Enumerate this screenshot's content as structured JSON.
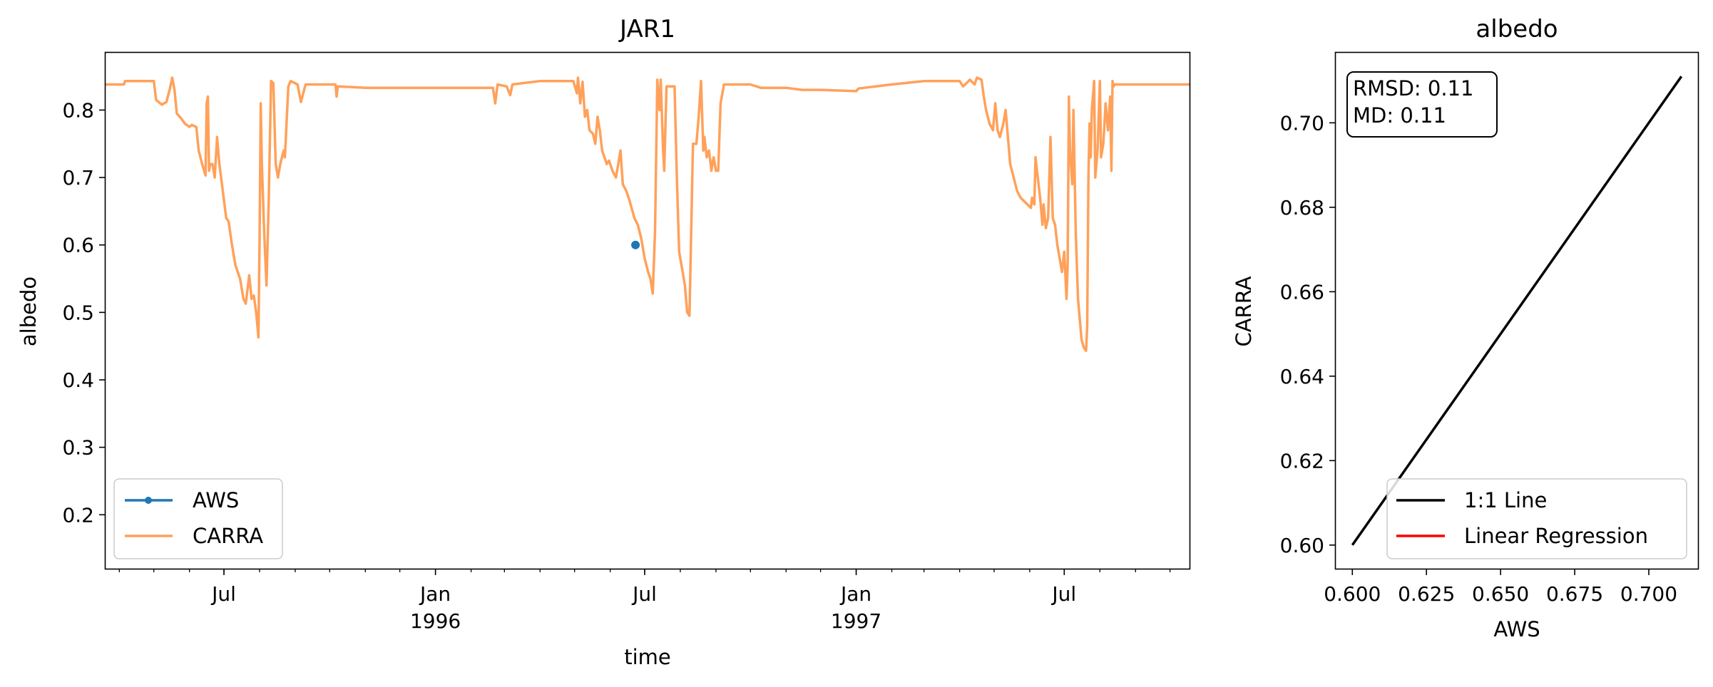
{
  "chart_data": [
    {
      "type": "line",
      "title": "JAR1",
      "xlabel": "time",
      "ylabel": "albedo",
      "xlim": [
        "1995-03-20",
        "1997-10-18"
      ],
      "ylim": [
        0.12,
        0.885
      ],
      "yticks": [
        "0.2",
        "0.3",
        "0.4",
        "0.5",
        "0.6",
        "0.7",
        "0.8"
      ],
      "xticks": [
        {
          "date": "1995-07-01",
          "label": "Jul",
          "sublabel": ""
        },
        {
          "date": "1996-01-01",
          "label": "Jan",
          "sublabel": "1996"
        },
        {
          "date": "1996-07-01",
          "label": "Jul",
          "sublabel": ""
        },
        {
          "date": "1997-01-01",
          "label": "Jan",
          "sublabel": "1997"
        },
        {
          "date": "1997-07-01",
          "label": "Jul",
          "sublabel": ""
        }
      ],
      "minor_ticks_monthly": true,
      "legend": "lower left",
      "grid": false,
      "series": [
        {
          "name": "AWS",
          "color": "#1f77b4",
          "style": "line-marker",
          "points": [
            [
              "1996-06-23",
              0.6
            ]
          ]
        },
        {
          "name": "CARRA",
          "color": "#ffa15a",
          "style": "line",
          "points": [
            [
              "1995-03-20",
              0.838
            ],
            [
              "1995-04-05",
              0.838
            ],
            [
              "1995-04-06",
              0.843
            ],
            [
              "1995-05-01",
              0.843
            ],
            [
              "1995-05-03",
              0.815
            ],
            [
              "1995-05-08",
              0.808
            ],
            [
              "1995-05-12",
              0.812
            ],
            [
              "1995-05-15",
              0.832
            ],
            [
              "1995-05-17",
              0.848
            ],
            [
              "1995-05-19",
              0.83
            ],
            [
              "1995-05-21",
              0.795
            ],
            [
              "1995-05-25",
              0.787
            ],
            [
              "1995-05-28",
              0.78
            ],
            [
              "1995-06-01",
              0.775
            ],
            [
              "1995-06-03",
              0.778
            ],
            [
              "1995-06-07",
              0.775
            ],
            [
              "1995-06-09",
              0.74
            ],
            [
              "1995-06-12",
              0.72
            ],
            [
              "1995-06-15",
              0.703
            ],
            [
              "1995-06-16",
              0.81
            ],
            [
              "1995-06-17",
              0.82
            ],
            [
              "1995-06-18",
              0.71
            ],
            [
              "1995-06-19",
              0.72
            ],
            [
              "1995-06-21",
              0.72
            ],
            [
              "1995-06-23",
              0.7
            ],
            [
              "1995-06-25",
              0.76
            ],
            [
              "1995-06-27",
              0.72
            ],
            [
              "1995-06-30",
              0.68
            ],
            [
              "1995-07-03",
              0.64
            ],
            [
              "1995-07-05",
              0.635
            ],
            [
              "1995-07-08",
              0.6
            ],
            [
              "1995-07-11",
              0.57
            ],
            [
              "1995-07-15",
              0.55
            ],
            [
              "1995-07-18",
              0.52
            ],
            [
              "1995-07-20",
              0.513
            ],
            [
              "1995-07-23",
              0.555
            ],
            [
              "1995-07-25",
              0.52
            ],
            [
              "1995-07-27",
              0.525
            ],
            [
              "1995-07-29",
              0.5
            ],
            [
              "1995-07-31",
              0.463
            ],
            [
              "1995-08-01",
              0.61
            ],
            [
              "1995-08-02",
              0.81
            ],
            [
              "1995-08-03",
              0.72
            ],
            [
              "1995-08-05",
              0.62
            ],
            [
              "1995-08-07",
              0.54
            ],
            [
              "1995-08-09",
              0.67
            ],
            [
              "1995-08-11",
              0.843
            ],
            [
              "1995-08-13",
              0.84
            ],
            [
              "1995-08-15",
              0.72
            ],
            [
              "1995-08-17",
              0.7
            ],
            [
              "1995-08-19",
              0.72
            ],
            [
              "1995-08-22",
              0.74
            ],
            [
              "1995-08-23",
              0.73
            ],
            [
              "1995-08-26",
              0.835
            ],
            [
              "1995-08-28",
              0.843
            ],
            [
              "1995-09-03",
              0.838
            ],
            [
              "1995-09-06",
              0.812
            ],
            [
              "1995-09-10",
              0.838
            ],
            [
              "1995-10-06",
              0.838
            ],
            [
              "1995-10-07",
              0.82
            ],
            [
              "1995-10-08",
              0.835
            ],
            [
              "1995-11-01",
              0.833
            ],
            [
              "1996-02-20",
              0.833
            ],
            [
              "1996-02-22",
              0.81
            ],
            [
              "1996-02-24",
              0.838
            ],
            [
              "1996-03-03",
              0.835
            ],
            [
              "1996-03-06",
              0.822
            ],
            [
              "1996-03-08",
              0.838
            ],
            [
              "1996-04-01",
              0.843
            ],
            [
              "1996-04-30",
              0.843
            ],
            [
              "1996-05-03",
              0.825
            ],
            [
              "1996-05-04",
              0.848
            ],
            [
              "1996-05-06",
              0.81
            ],
            [
              "1996-05-08",
              0.842
            ],
            [
              "1996-05-10",
              0.79
            ],
            [
              "1996-05-12",
              0.8
            ],
            [
              "1996-05-14",
              0.77
            ],
            [
              "1996-05-17",
              0.765
            ],
            [
              "1996-05-19",
              0.75
            ],
            [
              "1996-05-21",
              0.79
            ],
            [
              "1996-05-23",
              0.77
            ],
            [
              "1996-05-25",
              0.74
            ],
            [
              "1996-05-27",
              0.73
            ],
            [
              "1996-05-29",
              0.72
            ],
            [
              "1996-05-31",
              0.725
            ],
            [
              "1996-06-03",
              0.71
            ],
            [
              "1996-06-06",
              0.7
            ],
            [
              "1996-06-08",
              0.72
            ],
            [
              "1996-06-10",
              0.74
            ],
            [
              "1996-06-12",
              0.69
            ],
            [
              "1996-06-15",
              0.68
            ],
            [
              "1996-06-18",
              0.665
            ],
            [
              "1996-06-22",
              0.64
            ],
            [
              "1996-06-25",
              0.63
            ],
            [
              "1996-06-28",
              0.61
            ],
            [
              "1996-07-01",
              0.58
            ],
            [
              "1996-07-04",
              0.56
            ],
            [
              "1996-07-06",
              0.55
            ],
            [
              "1996-07-08",
              0.528
            ],
            [
              "1996-07-10",
              0.62
            ],
            [
              "1996-07-12",
              0.845
            ],
            [
              "1996-07-14",
              0.8
            ],
            [
              "1996-07-15",
              0.845
            ],
            [
              "1996-07-17",
              0.74
            ],
            [
              "1996-07-18",
              0.71
            ],
            [
              "1996-07-20",
              0.835
            ],
            [
              "1996-07-23",
              0.835
            ],
            [
              "1996-07-27",
              0.835
            ],
            [
              "1996-07-29",
              0.7
            ],
            [
              "1996-07-31",
              0.59
            ],
            [
              "1996-08-03",
              0.56
            ],
            [
              "1996-08-05",
              0.54
            ],
            [
              "1996-08-07",
              0.5
            ],
            [
              "1996-08-09",
              0.495
            ],
            [
              "1996-08-12",
              0.75
            ],
            [
              "1996-08-15",
              0.75
            ],
            [
              "1996-08-17",
              0.79
            ],
            [
              "1996-08-19",
              0.843
            ],
            [
              "1996-08-21",
              0.74
            ],
            [
              "1996-08-22",
              0.76
            ],
            [
              "1996-08-24",
              0.73
            ],
            [
              "1996-08-26",
              0.74
            ],
            [
              "1996-08-28",
              0.71
            ],
            [
              "1996-08-30",
              0.73
            ],
            [
              "1996-09-01",
              0.71
            ],
            [
              "1996-09-03",
              0.71
            ],
            [
              "1996-09-05",
              0.81
            ],
            [
              "1996-09-08",
              0.838
            ],
            [
              "1996-10-01",
              0.838
            ],
            [
              "1996-10-10",
              0.833
            ],
            [
              "1996-11-01",
              0.833
            ],
            [
              "1996-11-15",
              0.83
            ],
            [
              "1996-12-01",
              0.83
            ],
            [
              "1997-01-01",
              0.828
            ],
            [
              "1997-01-03",
              0.832
            ],
            [
              "1997-02-01",
              0.838
            ],
            [
              "1997-03-01",
              0.843
            ],
            [
              "1997-04-01",
              0.843
            ],
            [
              "1997-04-04",
              0.835
            ],
            [
              "1997-04-10",
              0.845
            ],
            [
              "1997-04-14",
              0.838
            ],
            [
              "1997-04-16",
              0.848
            ],
            [
              "1997-04-20",
              0.845
            ],
            [
              "1997-04-22",
              0.82
            ],
            [
              "1997-04-24",
              0.8
            ],
            [
              "1997-04-27",
              0.78
            ],
            [
              "1997-04-30",
              0.77
            ],
            [
              "1997-05-02",
              0.81
            ],
            [
              "1997-05-04",
              0.77
            ],
            [
              "1997-05-06",
              0.76
            ],
            [
              "1997-05-09",
              0.78
            ],
            [
              "1997-05-11",
              0.8
            ],
            [
              "1997-05-13",
              0.76
            ],
            [
              "1997-05-15",
              0.72
            ],
            [
              "1997-05-18",
              0.7
            ],
            [
              "1997-05-21",
              0.68
            ],
            [
              "1997-05-24",
              0.67
            ],
            [
              "1997-05-27",
              0.665
            ],
            [
              "1997-05-30",
              0.66
            ],
            [
              "1997-06-02",
              0.655
            ],
            [
              "1997-06-03",
              0.67
            ],
            [
              "1997-06-05",
              0.66
            ],
            [
              "1997-06-06",
              0.73
            ],
            [
              "1997-06-08",
              0.7
            ],
            [
              "1997-06-10",
              0.67
            ],
            [
              "1997-06-12",
              0.63
            ],
            [
              "1997-06-13",
              0.66
            ],
            [
              "1997-06-15",
              0.625
            ],
            [
              "1997-06-17",
              0.64
            ],
            [
              "1997-06-19",
              0.76
            ],
            [
              "1997-06-21",
              0.64
            ],
            [
              "1997-06-23",
              0.63
            ],
            [
              "1997-06-25",
              0.6
            ],
            [
              "1997-06-27",
              0.58
            ],
            [
              "1997-06-29",
              0.56
            ],
            [
              "1997-07-01",
              0.59
            ],
            [
              "1997-07-03",
              0.52
            ],
            [
              "1997-07-04",
              0.57
            ],
            [
              "1997-07-05",
              0.82
            ],
            [
              "1997-07-06",
              0.74
            ],
            [
              "1997-07-08",
              0.69
            ],
            [
              "1997-07-09",
              0.8
            ],
            [
              "1997-07-11",
              0.62
            ],
            [
              "1997-07-13",
              0.52
            ],
            [
              "1997-07-15",
              0.48
            ],
            [
              "1997-07-16",
              0.46
            ],
            [
              "1997-07-18",
              0.448
            ],
            [
              "1997-07-20",
              0.443
            ],
            [
              "1997-07-21",
              0.48
            ],
            [
              "1997-07-22",
              0.7
            ],
            [
              "1997-07-23",
              0.78
            ],
            [
              "1997-07-24",
              0.73
            ],
            [
              "1997-07-25",
              0.8
            ],
            [
              "1997-07-27",
              0.843
            ],
            [
              "1997-07-28",
              0.7
            ],
            [
              "1997-07-30",
              0.74
            ],
            [
              "1997-08-01",
              0.843
            ],
            [
              "1997-08-02",
              0.73
            ],
            [
              "1997-08-04",
              0.75
            ],
            [
              "1997-08-06",
              0.81
            ],
            [
              "1997-08-08",
              0.77
            ],
            [
              "1997-08-10",
              0.82
            ],
            [
              "1997-08-11",
              0.71
            ],
            [
              "1997-08-12",
              0.843
            ],
            [
              "1997-08-13",
              0.835
            ],
            [
              "1997-08-14",
              0.838
            ],
            [
              "1997-10-18",
              0.838
            ]
          ]
        }
      ]
    },
    {
      "type": "scatter",
      "title": "albedo",
      "xlabel": "AWS",
      "ylabel": "CARRA",
      "xlim": [
        0.5944,
        0.7166
      ],
      "ylim": [
        0.5944,
        0.7166
      ],
      "xticks": [
        "0.600",
        "0.625",
        "0.650",
        "0.675",
        "0.700"
      ],
      "yticks": [
        "0.60",
        "0.62",
        "0.64",
        "0.66",
        "0.68",
        "0.70"
      ],
      "stats": [
        "RMSD: 0.11",
        "MD: 0.11"
      ],
      "legend": "lower right",
      "series": [
        {
          "name": "1:1 Line",
          "color": "#000000",
          "x": [
            0.6,
            0.711
          ],
          "y": [
            0.6,
            0.711
          ]
        },
        {
          "name": "Linear Regression",
          "color": "#ff0000",
          "x": [],
          "y": []
        }
      ]
    }
  ]
}
